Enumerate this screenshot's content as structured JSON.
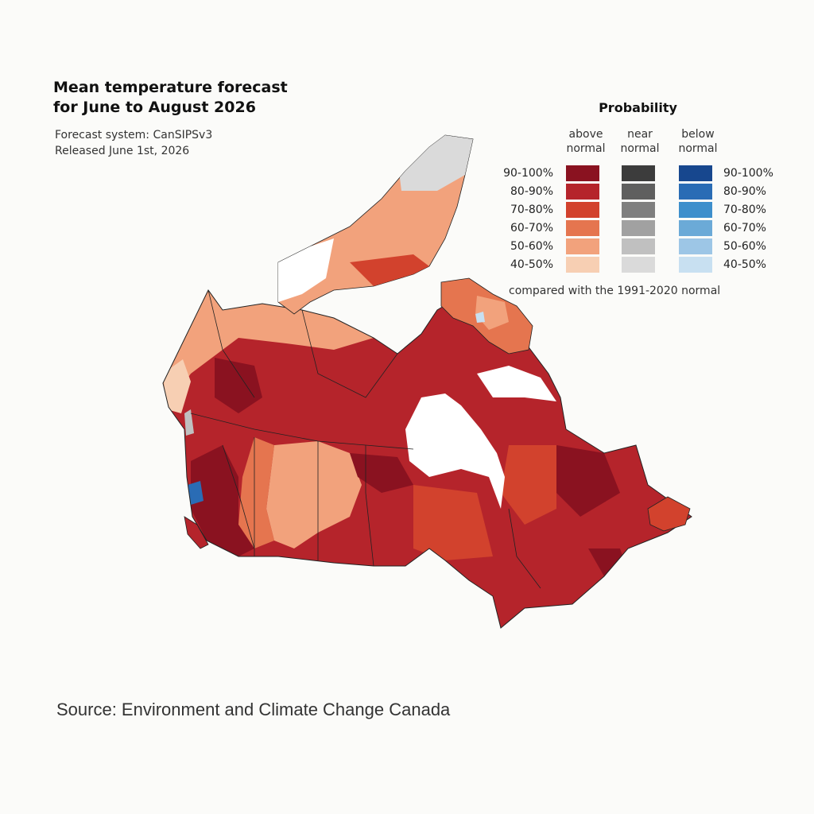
{
  "title_line1": "Mean temperature forecast",
  "title_line2": "for June to August 2026",
  "subtitle_line1": "Forecast system: CanSIPSv3",
  "subtitle_line2": "Released June 1st, 2026",
  "source": "Source: Environment and Climate Change Canada",
  "legend": {
    "title": "Probability",
    "above_header": [
      "above",
      "normal"
    ],
    "near_header": [
      "near",
      "normal"
    ],
    "below_header": [
      "below",
      "normal"
    ],
    "ranges": [
      "90-100%",
      "80-90%",
      "70-80%",
      "60-70%",
      "50-60%",
      "40-50%"
    ],
    "above_colors": [
      "#8a1220",
      "#b5242b",
      "#d2422d",
      "#e5754f",
      "#f2a27c",
      "#f7cfb3"
    ],
    "near_colors": [
      "#3c3c3c",
      "#5f5f5f",
      "#7f7f7f",
      "#a1a1a1",
      "#c0c0c0",
      "#dadada"
    ],
    "below_colors": [
      "#17478e",
      "#2a6cb5",
      "#3d8fcc",
      "#6baad7",
      "#9dc6e6",
      "#c8e0f1"
    ],
    "note": "compared with the 1991-2020 normal"
  }
}
